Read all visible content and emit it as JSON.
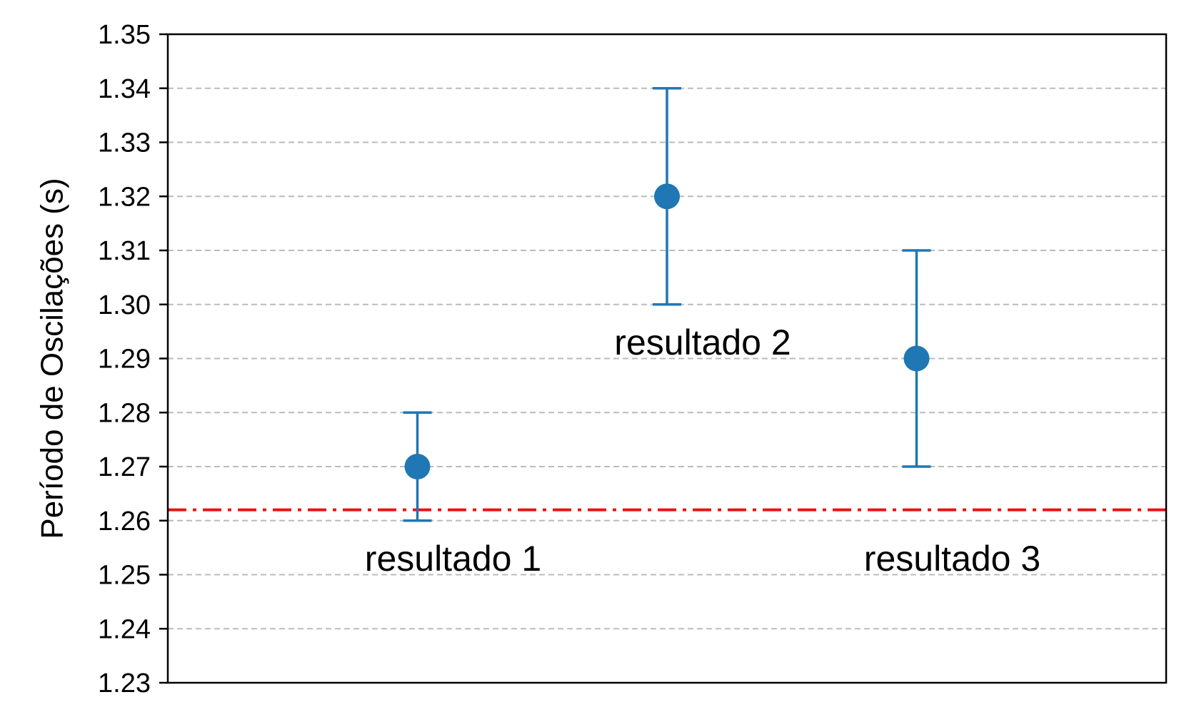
{
  "chart_data": {
    "type": "scatter",
    "title": "",
    "xlabel": "",
    "ylabel": "Período de Oscilações (s)",
    "xlim": [
      0,
      4
    ],
    "ylim": [
      1.23,
      1.35
    ],
    "yticks": [
      "1.23",
      "1.24",
      "1.25",
      "1.26",
      "1.27",
      "1.28",
      "1.29",
      "1.30",
      "1.31",
      "1.32",
      "1.33",
      "1.34",
      "1.35"
    ],
    "grid": "y-dashed",
    "points": [
      {
        "x": 1,
        "y": 1.27,
        "err": 0.01,
        "label": "resultado 1",
        "label_y": 1.251
      },
      {
        "x": 2,
        "y": 1.32,
        "err": 0.02,
        "label": "resultado 2",
        "label_y": 1.291
      },
      {
        "x": 3,
        "y": 1.29,
        "err": 0.02,
        "label": "resultado 3",
        "label_y": 1.251
      }
    ],
    "reference_line": {
      "y": 1.262,
      "style": "dash-dot",
      "color": "#ee1111"
    },
    "colors": {
      "series": "#1f77b4",
      "grid": "#bbbbbb",
      "reference": "#ee1111"
    }
  }
}
